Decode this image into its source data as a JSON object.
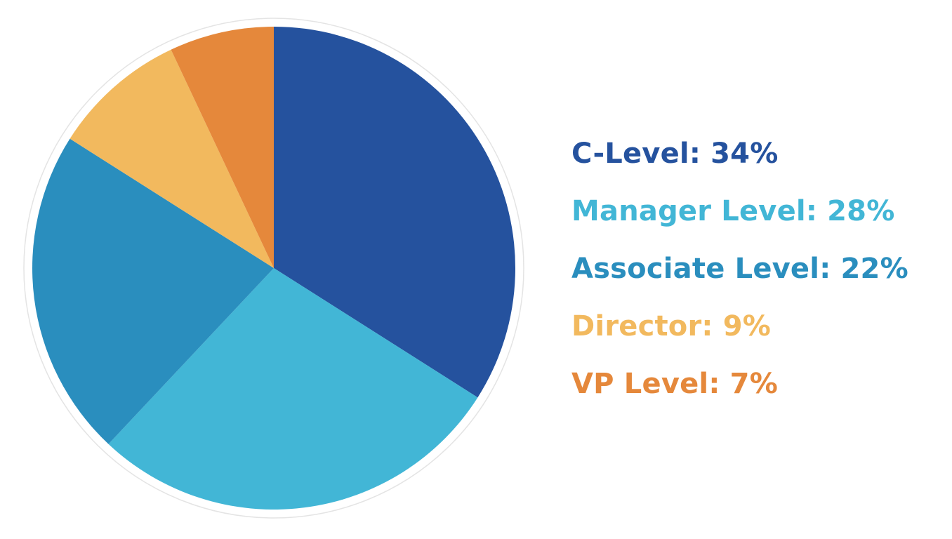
{
  "chart_data": {
    "type": "pie",
    "start": "12 o'clock",
    "direction": "clockwise",
    "slices": [
      {
        "label": "C-Level",
        "value": 34,
        "value_text": "34%",
        "color": "#25529e"
      },
      {
        "label": "Manager Level",
        "value": 28,
        "value_text": "28%",
        "color": "#42b6d6"
      },
      {
        "label": "Associate Level",
        "value": 22,
        "value_text": "22%",
        "color": "#2a8ebe"
      },
      {
        "label": "Director",
        "value": 9,
        "value_text": "9%",
        "color": "#f2b95e"
      },
      {
        "label": "VP Level",
        "value": 7,
        "value_text": "7%",
        "color": "#e5883b"
      }
    ],
    "legend_position": "right"
  }
}
